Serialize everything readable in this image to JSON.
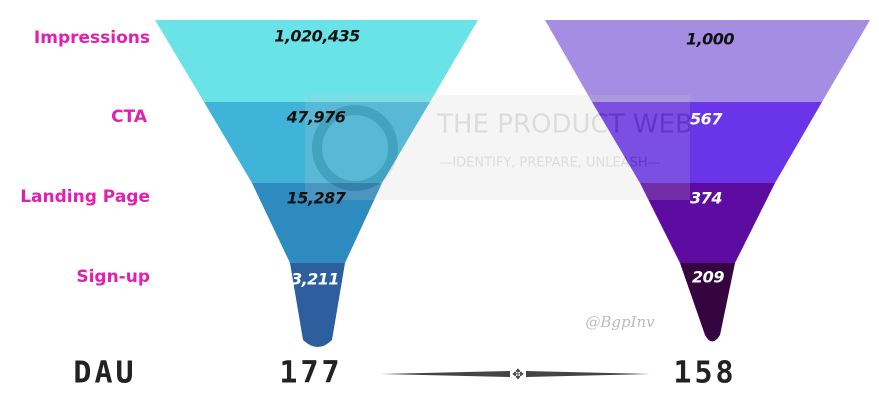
{
  "stages": [
    "Impressions",
    "CTA",
    "Landing Page",
    "Sign-up"
  ],
  "funnels": [
    {
      "values": [
        "1,020,435",
        "47,976",
        "15,287",
        "3,211"
      ],
      "total": "177"
    },
    {
      "values": [
        "1,000",
        "567",
        "374",
        "209"
      ],
      "total": "158"
    }
  ],
  "footer_label": "DAU",
  "watermark": {
    "title": "THE PRODUCT WEB",
    "tagline": "—IDENTIFY, PREPARE, UNLEASH—"
  },
  "credit": "@BgpInv"
}
